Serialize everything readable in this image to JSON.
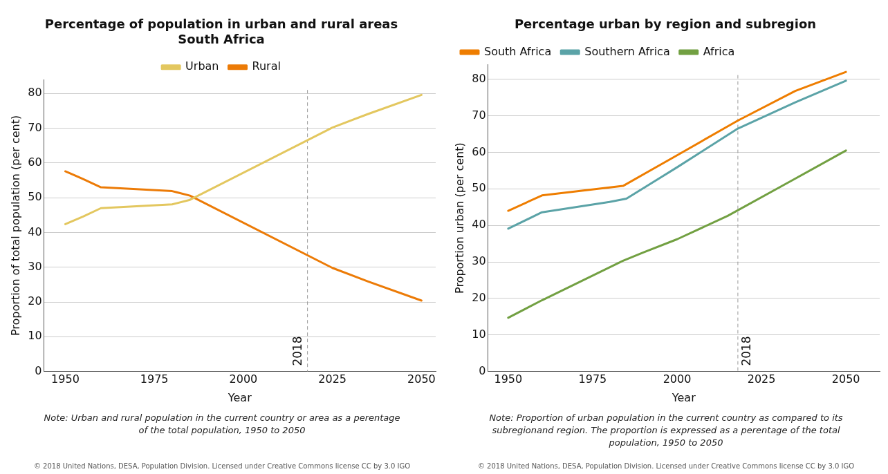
{
  "chart_data": [
    {
      "type": "line",
      "title": "Percentage of population in urban and rural areas\nSouth Africa",
      "xlabel": "Year",
      "ylabel": "Proportion of total population (per cent)",
      "xlim": [
        1944,
        2054
      ],
      "xticks": [
        1950,
        1975,
        2000,
        2025,
        2050
      ],
      "ylim": [
        0,
        84
      ],
      "yticks": [
        0,
        10,
        20,
        30,
        40,
        50,
        60,
        70,
        80
      ],
      "grid": "y",
      "legend": "top",
      "series": [
        {
          "name": "Urban",
          "color": "#e3c75f",
          "x": [
            1950,
            1955,
            1960,
            1980,
            1985,
            2025,
            2035,
            2050
          ],
          "values": [
            42.4,
            44.6,
            47.0,
            48.1,
            49.4,
            70.2,
            74.1,
            79.6
          ]
        },
        {
          "name": "Rural",
          "color": "#ec7b07",
          "x": [
            1950,
            1955,
            1960,
            1980,
            1985,
            2025,
            2035,
            2050
          ],
          "values": [
            57.6,
            55.4,
            53.0,
            51.9,
            50.6,
            29.8,
            25.9,
            20.4
          ]
        }
      ],
      "ref_lines": [
        {
          "axis": "x",
          "value": 2018,
          "label": "2018",
          "color": "#999999",
          "line_style": "dashed"
        }
      ],
      "annotations": [
        "Note: Urban and rural population in the current country or area as a perentage of the total population, 1950 to 2050",
        "© 2018 United Nations, DESA, Population Division. Licensed under Creative Commons license CC by 3.0 IGO"
      ]
    },
    {
      "type": "line",
      "title": "Percentage urban by region and subregion",
      "xlabel": "Year",
      "ylabel": "Proportion urban (per cent)",
      "xlim": [
        1944,
        2060
      ],
      "xticks": [
        1950,
        1975,
        2000,
        2025,
        2050
      ],
      "ylim": [
        0,
        84
      ],
      "yticks": [
        0,
        10,
        20,
        30,
        40,
        50,
        60,
        70,
        80
      ],
      "grid": "y",
      "legend": "top left",
      "series": [
        {
          "name": "South Africa",
          "color": "#ee7d00",
          "x": [
            1950,
            1960,
            1984,
            2000,
            2018,
            2035,
            2050
          ],
          "values": [
            44.0,
            48.2,
            50.8,
            59.2,
            68.7,
            76.8,
            82.0
          ]
        },
        {
          "name": "Southern Africa",
          "color": "#5ba3a7",
          "x": [
            1950,
            1960,
            1980,
            1985,
            2000,
            2018,
            2035,
            2050
          ],
          "values": [
            39.1,
            43.6,
            46.4,
            47.3,
            55.9,
            66.5,
            73.7,
            79.6
          ]
        },
        {
          "name": "Africa",
          "color": "#72a042",
          "x": [
            1950,
            1960,
            1984,
            1990,
            2000,
            2015,
            2035,
            2050
          ],
          "values": [
            14.7,
            19.5,
            30.3,
            32.6,
            36.2,
            42.6,
            52.8,
            60.5
          ]
        }
      ],
      "ref_lines": [
        {
          "axis": "x",
          "value": 2018,
          "label": "2018",
          "color": "#999999",
          "line_style": "dashed"
        }
      ],
      "annotations": [
        "Note: Proportion of urban population in the current country as compared to its subregionand region. The proportion is expressed as a perentage of the total population, 1950 to 2050",
        "© 2018 United Nations, DESA, Population Division. Licensed under Creative Commons license CC by 3.0 IGO"
      ]
    }
  ]
}
